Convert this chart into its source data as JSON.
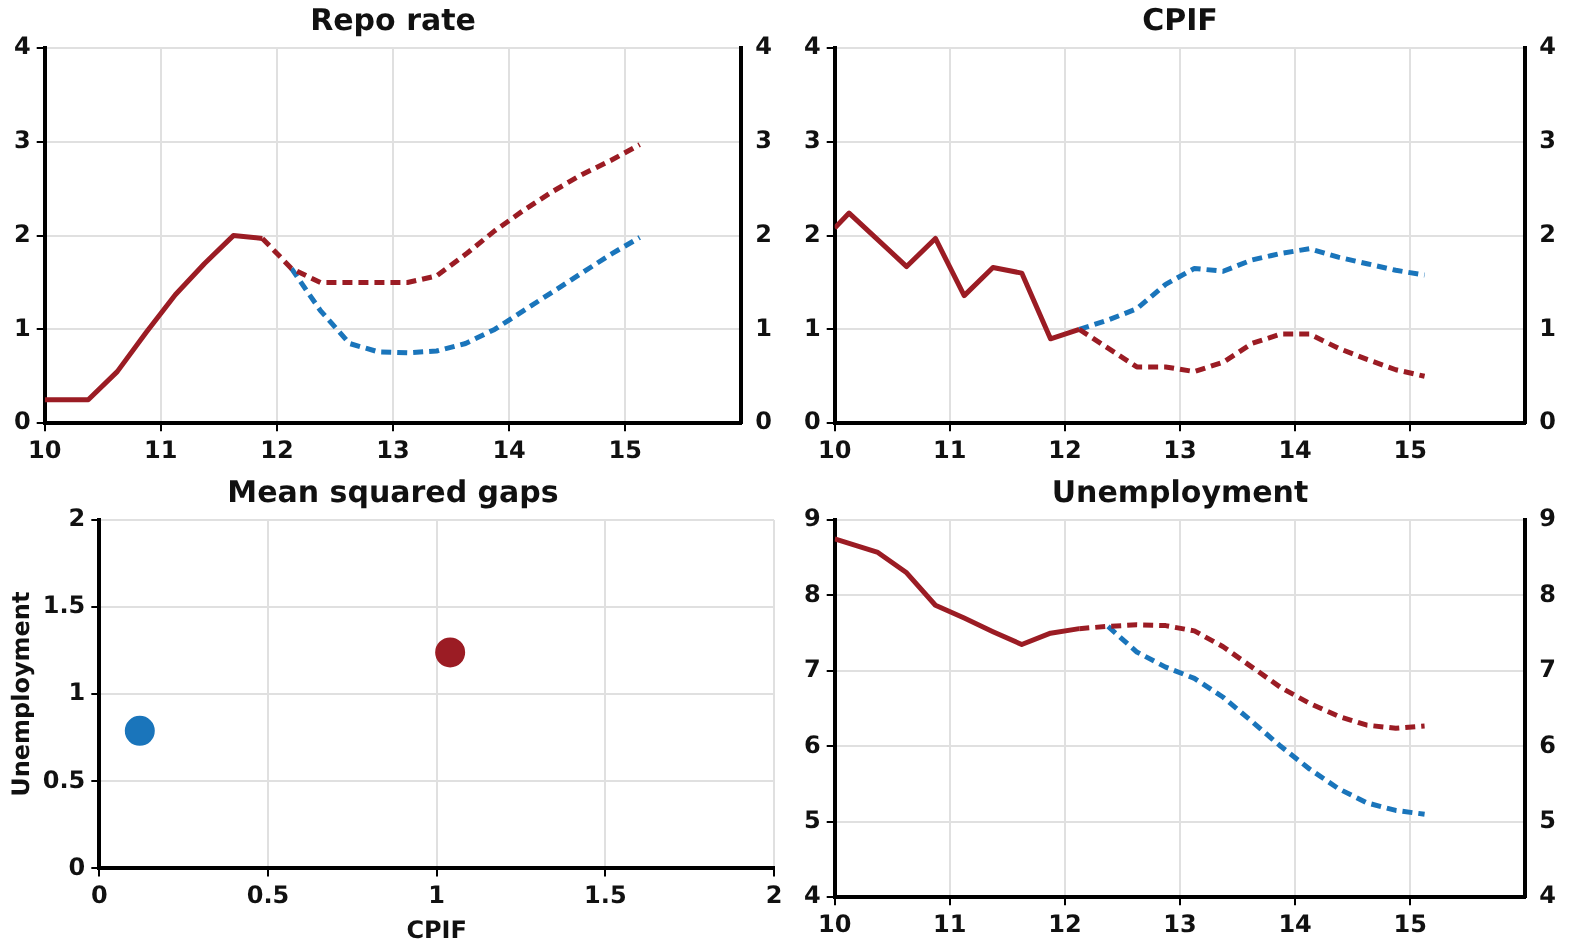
{
  "chart_data": [
    {
      "type": "line",
      "title": "Repo rate",
      "xlim": [
        10,
        16
      ],
      "xticks": [
        10,
        11,
        12,
        13,
        14,
        15
      ],
      "ylim": [
        0,
        4
      ],
      "yticks": [
        0,
        1,
        2,
        3,
        4
      ],
      "y2lim": [
        0,
        4
      ],
      "y2ticks": [
        0,
        1,
        2,
        3,
        4
      ],
      "grid": true,
      "legend": false,
      "marker": "none",
      "series": [
        {
          "color": "#9b1c24",
          "line_style": "solid",
          "x": [
            10,
            10.375,
            10.625,
            10.875,
            11.125,
            11.375,
            11.625,
            11.875
          ],
          "values": [
            0.25,
            0.25,
            0.55,
            0.97,
            1.37,
            1.7,
            2.0,
            1.97
          ]
        },
        {
          "color": "#9b1c24",
          "line_style": "dashed",
          "x": [
            11.875,
            12.125,
            12.375,
            12.625,
            12.875,
            13.125,
            13.375,
            13.625,
            13.875,
            14.125,
            14.375,
            14.625,
            14.875,
            15.125
          ],
          "values": [
            1.97,
            1.65,
            1.5,
            1.5,
            1.5,
            1.5,
            1.57,
            1.8,
            2.05,
            2.27,
            2.47,
            2.65,
            2.8,
            2.97
          ]
        },
        {
          "color": "#1a75bb",
          "line_style": "dashed",
          "x": [
            12.125,
            12.375,
            12.625,
            12.875,
            13.125,
            13.375,
            13.625,
            13.875,
            14.125,
            14.375,
            14.625,
            14.875,
            15.125
          ],
          "values": [
            1.65,
            1.2,
            0.85,
            0.76,
            0.75,
            0.77,
            0.85,
            1.0,
            1.2,
            1.4,
            1.6,
            1.8,
            1.98
          ]
        }
      ]
    },
    {
      "type": "line",
      "title": "CPIF",
      "xlim": [
        10,
        16
      ],
      "xticks": [
        10,
        11,
        12,
        13,
        14,
        15
      ],
      "ylim": [
        0,
        4
      ],
      "yticks": [
        0,
        1,
        2,
        3,
        4
      ],
      "y2lim": [
        0,
        4
      ],
      "y2ticks": [
        0,
        1,
        2,
        3,
        4
      ],
      "grid": true,
      "legend": false,
      "marker": "none",
      "series": [
        {
          "color": "#9b1c24",
          "line_style": "solid",
          "x": [
            10,
            10.125,
            10.625,
            10.875,
            11.125,
            11.375,
            11.625,
            11.875,
            12.125
          ],
          "values": [
            2.08,
            2.24,
            1.67,
            1.97,
            1.36,
            1.66,
            1.6,
            0.9,
            1.0
          ]
        },
        {
          "color": "#9b1c24",
          "line_style": "dashed",
          "x": [
            12.125,
            12.375,
            12.625,
            12.875,
            13.125,
            13.375,
            13.625,
            13.875,
            14.125,
            14.375,
            14.625,
            14.875,
            15.125
          ],
          "values": [
            1.0,
            0.8,
            0.6,
            0.6,
            0.55,
            0.65,
            0.85,
            0.95,
            0.95,
            0.8,
            0.68,
            0.57,
            0.5
          ]
        },
        {
          "color": "#1a75bb",
          "line_style": "dashed",
          "x": [
            12.125,
            12.375,
            12.625,
            12.875,
            13.125,
            13.375,
            13.625,
            13.875,
            14.125,
            14.375,
            14.625,
            14.875,
            15.125
          ],
          "values": [
            1.0,
            1.1,
            1.22,
            1.48,
            1.65,
            1.62,
            1.74,
            1.81,
            1.86,
            1.77,
            1.7,
            1.63,
            1.58
          ]
        }
      ]
    },
    {
      "type": "scatter",
      "title": "Mean squared gaps",
      "xlabel": "CPIF",
      "ylabel": "Unemployment",
      "xlim": [
        0,
        2
      ],
      "xticks": [
        0,
        0.5,
        1,
        1.5,
        2
      ],
      "ylim": [
        0,
        2
      ],
      "yticks": [
        0,
        0.5,
        1,
        1.5,
        2
      ],
      "grid": true,
      "legend": false,
      "marker": "circle",
      "series": [
        {
          "color": "#1a75bb",
          "x": [
            0.12
          ],
          "values": [
            0.79
          ]
        },
        {
          "color": "#9b1c24",
          "x": [
            1.04
          ],
          "values": [
            1.24
          ]
        }
      ]
    },
    {
      "type": "line",
      "title": "Unemployment",
      "xlim": [
        10,
        16
      ],
      "xticks": [
        10,
        11,
        12,
        13,
        14,
        15
      ],
      "ylim": [
        4,
        9
      ],
      "yticks": [
        4,
        5,
        6,
        7,
        8,
        9
      ],
      "y2lim": [
        4,
        9
      ],
      "y2ticks": [
        4,
        5,
        6,
        7,
        8,
        9
      ],
      "grid": true,
      "legend": false,
      "marker": "none",
      "series": [
        {
          "color": "#9b1c24",
          "line_style": "solid",
          "x": [
            10,
            10.375,
            10.625,
            10.875,
            11.125,
            11.375,
            11.625,
            11.875,
            12.125
          ],
          "values": [
            8.75,
            8.57,
            8.3,
            7.87,
            7.7,
            7.52,
            7.35,
            7.5,
            7.56
          ]
        },
        {
          "color": "#9b1c24",
          "line_style": "dashed",
          "x": [
            12.125,
            12.375,
            12.625,
            12.875,
            13.125,
            13.375,
            13.625,
            13.875,
            14.125,
            14.375,
            14.625,
            14.875,
            15.125
          ],
          "values": [
            7.56,
            7.59,
            7.61,
            7.6,
            7.53,
            7.32,
            7.05,
            6.78,
            6.57,
            6.4,
            6.28,
            6.24,
            6.27
          ]
        },
        {
          "color": "#1a75bb",
          "line_style": "dashed",
          "x": [
            12.375,
            12.625,
            12.875,
            13.125,
            13.375,
            13.625,
            13.875,
            14.125,
            14.375,
            14.625,
            14.875,
            15.125
          ],
          "values": [
            7.59,
            7.25,
            7.05,
            6.9,
            6.65,
            6.33,
            6.0,
            5.7,
            5.44,
            5.25,
            5.15,
            5.1
          ]
        }
      ]
    }
  ]
}
